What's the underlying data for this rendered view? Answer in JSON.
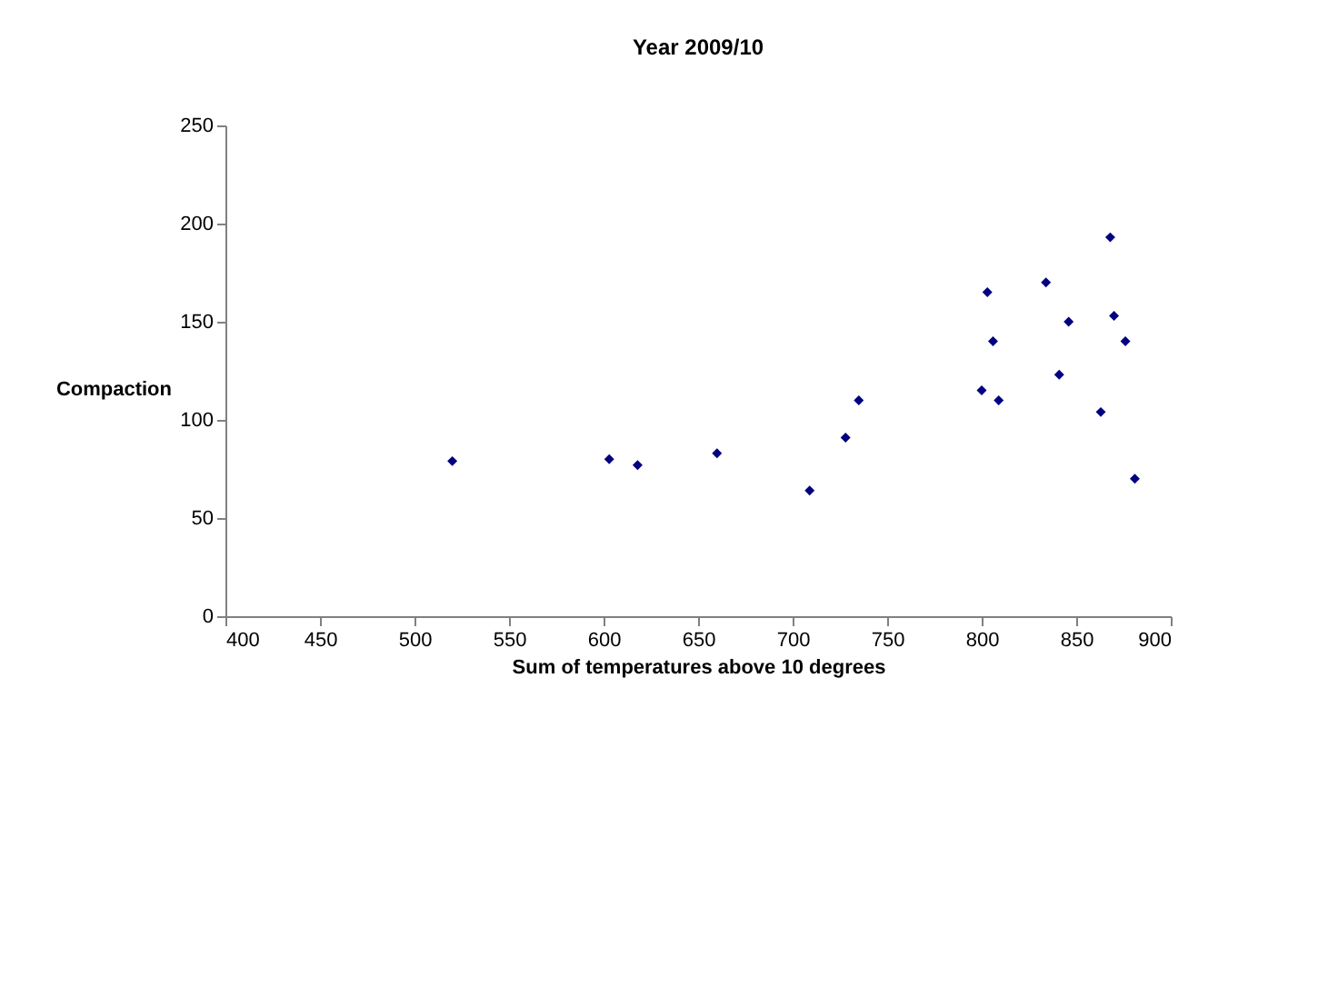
{
  "chart_data": {
    "type": "scatter",
    "title": "Year 2009/10",
    "xlabel": "Sum of temperatures above 10 degrees",
    "ylabel": "Compaction",
    "x": [
      520,
      603,
      618,
      660,
      709,
      728,
      735,
      800,
      803,
      806,
      809,
      834,
      841,
      846,
      863,
      868,
      870,
      876,
      881
    ],
    "series": [
      {
        "color": "#000080",
        "values": [
          79,
          80,
          77,
          83,
          64,
          91,
          110,
          115,
          165,
          140,
          110,
          170,
          123,
          150,
          104,
          193,
          153,
          140,
          70
        ]
      }
    ],
    "xlim": [
      400,
      900
    ],
    "xticks": [
      400,
      450,
      500,
      550,
      600,
      650,
      700,
      750,
      800,
      850,
      900
    ],
    "ylim": [
      0,
      250
    ],
    "yticks": [
      0,
      50,
      100,
      150,
      200,
      250
    ],
    "marker": "diamond",
    "grid": false
  }
}
